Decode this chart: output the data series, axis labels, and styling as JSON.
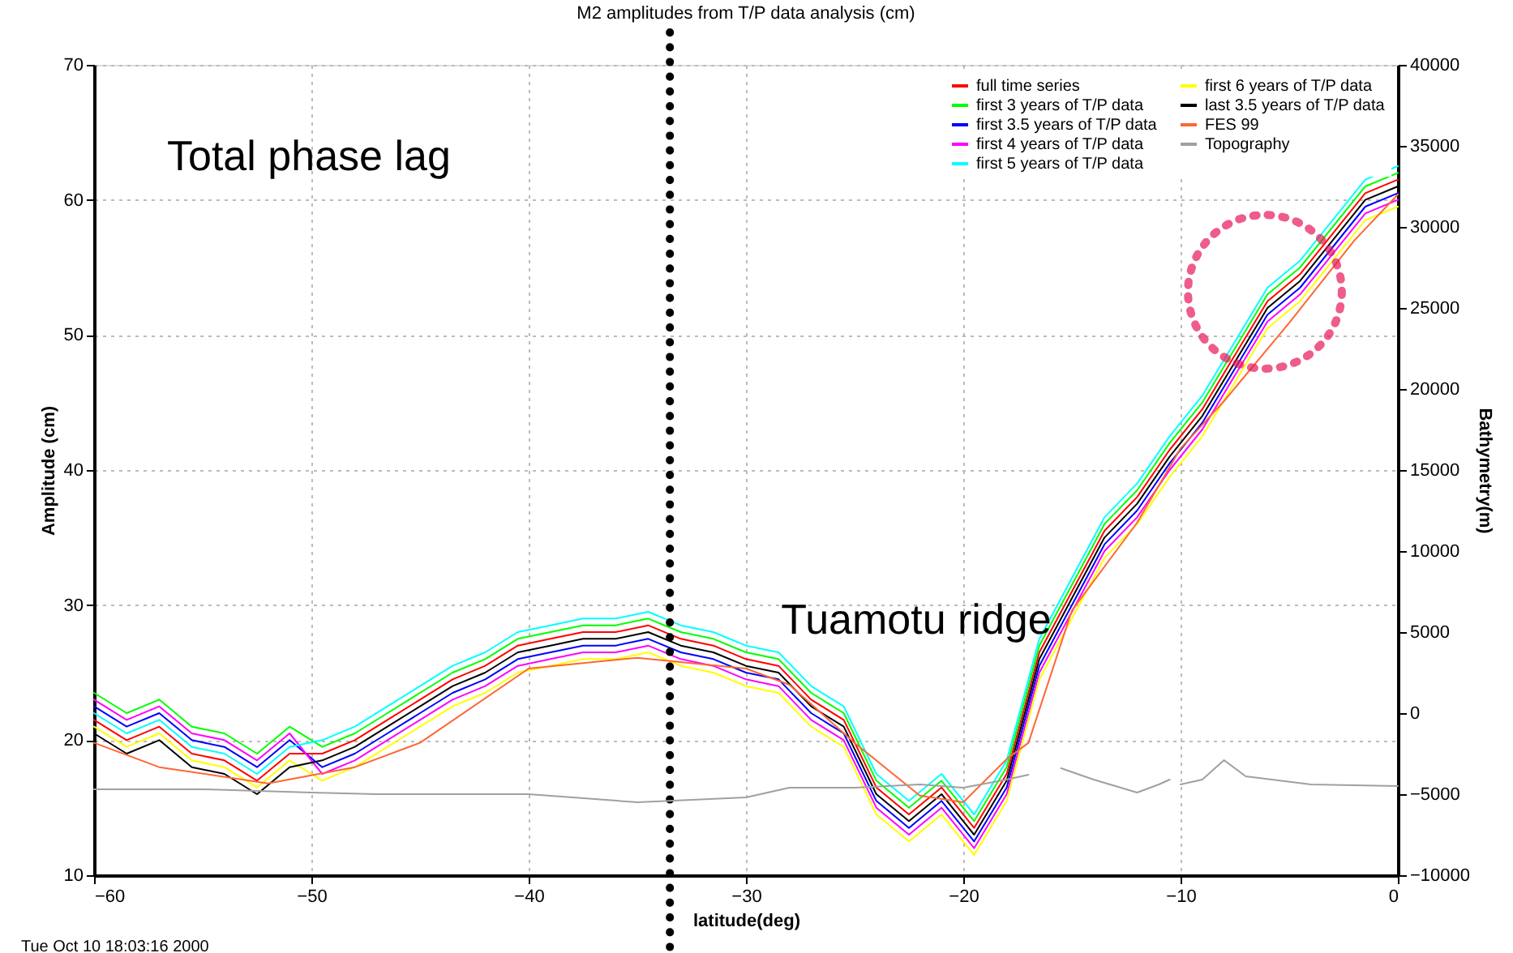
{
  "chart_data": {
    "type": "line",
    "title": "M2 amplitudes from T/P data analysis (cm)",
    "xlabel": "latitude(deg)",
    "ylabel": "Amplitude (cm)",
    "y2label": "Bathymetry(m)",
    "annotations": [
      "Total phase lag",
      "Tuamotu ridge",
      "Tue Oct 10 18:03:16 2000"
    ],
    "x": [
      -60,
      -58.5,
      -57,
      -55.5,
      -54,
      -52.5,
      -51,
      -49.5,
      -48,
      -46.5,
      -45,
      -43.5,
      -42,
      -40.5,
      -39,
      -37.5,
      -36,
      -34.5,
      -33,
      -31.5,
      -30,
      -28.5,
      -27,
      -25.5,
      -24,
      -22.5,
      -21,
      -19.5,
      -18,
      -16.5,
      -15,
      -13.5,
      -12,
      -10.5,
      -9,
      -7.5,
      -6,
      -4.5,
      -3,
      -1.5,
      0
    ],
    "series": [
      {
        "name": "full time series",
        "color": "#ff0000",
        "values": [
          21.5,
          20,
          21,
          19,
          18.5,
          17,
          19,
          19,
          20,
          21.5,
          23,
          24.5,
          25.5,
          27,
          27.5,
          28,
          28,
          28.5,
          27.5,
          27,
          26,
          25.5,
          23,
          21.5,
          16.5,
          14.5,
          16.5,
          13.5,
          17.5,
          26.5,
          31,
          35.5,
          38,
          41.5,
          44.5,
          48.5,
          52.5,
          54.5,
          57.5,
          60.5,
          61.5
        ]
      },
      {
        "name": "first 3 years of T/P data",
        "color": "#00ff00",
        "values": [
          23.5,
          22,
          23,
          21,
          20.5,
          19,
          21,
          19.5,
          20.5,
          22,
          23.5,
          25,
          26,
          27.5,
          28,
          28.5,
          28.5,
          29,
          28,
          27.5,
          26.5,
          26,
          23.5,
          22,
          17,
          15,
          17,
          14,
          18,
          27,
          31.5,
          36,
          38.5,
          42,
          45,
          49,
          53,
          55,
          58,
          61,
          62
        ]
      },
      {
        "name": "first 3.5 years of T/P data",
        "color": "#0000ff",
        "values": [
          22.5,
          21,
          22,
          20,
          19.5,
          18,
          20,
          18,
          19,
          20.5,
          22,
          23.5,
          24.5,
          26,
          26.5,
          27,
          27,
          27.5,
          26.5,
          26,
          25,
          24.5,
          22,
          20.5,
          15.5,
          13.5,
          15.5,
          12.5,
          16.5,
          25.5,
          30,
          34.5,
          37,
          40.5,
          43.5,
          47.5,
          51.5,
          53.5,
          56.5,
          59.5,
          60.5
        ]
      },
      {
        "name": "first 4 years of T/P data",
        "color": "#ff00ff",
        "values": [
          23,
          21.5,
          22.5,
          20.5,
          20,
          18.5,
          20.5,
          17.5,
          18.5,
          20,
          21.5,
          23,
          24,
          25.5,
          26,
          26.5,
          26.5,
          27,
          26,
          25.5,
          24.5,
          24,
          21.5,
          20,
          15,
          13,
          15,
          12,
          16,
          25,
          29.5,
          34,
          36.5,
          40,
          43,
          47,
          51,
          53,
          56,
          59,
          60
        ]
      },
      {
        "name": "first 5 years of T/P data",
        "color": "#00ffff",
        "values": [
          22,
          20.5,
          21.5,
          19.5,
          19,
          17.5,
          19.5,
          20,
          21,
          22.5,
          24,
          25.5,
          26.5,
          28,
          28.5,
          29,
          29,
          29.5,
          28.5,
          28,
          27,
          26.5,
          24,
          22.5,
          17.5,
          15.5,
          17.5,
          14.5,
          18.5,
          27.5,
          32,
          36.5,
          39,
          42.5,
          45.5,
          49.5,
          53.5,
          55.5,
          58.5,
          61.5,
          62.5
        ]
      },
      {
        "name": "first 6 years of T/P data",
        "color": "#ffff00",
        "values": [
          21,
          19.5,
          20.5,
          18.5,
          18,
          16.5,
          18.5,
          17,
          18,
          19.5,
          21,
          22.5,
          23.5,
          25,
          25.5,
          26,
          26,
          26.5,
          25.5,
          25,
          24,
          23.5,
          21,
          19.5,
          14.5,
          12.5,
          14.5,
          11.5,
          15.5,
          24.5,
          29,
          33.5,
          36,
          39.5,
          42.5,
          46.5,
          50.5,
          52.5,
          55.5,
          58.5,
          59.5
        ]
      },
      {
        "name": "last 3.5 years of T/P data",
        "color": "#000000",
        "values": [
          20.5,
          19,
          20,
          18,
          17.5,
          16,
          18,
          18.5,
          19.5,
          21,
          22.5,
          24,
          25,
          26.5,
          27,
          27.5,
          27.5,
          28,
          27,
          26.5,
          25.5,
          25,
          22.5,
          21,
          16,
          14,
          16,
          13,
          17,
          26,
          30.5,
          35,
          37.5,
          41,
          44,
          48,
          52,
          54,
          57,
          60,
          61
        ]
      },
      {
        "name": "FES 99",
        "color": "#ff6633",
        "x": [
          -60,
          -57,
          -52,
          -48,
          -45,
          -40,
          -35,
          -30,
          -28,
          -25,
          -22,
          -20,
          -18,
          -17,
          -15,
          -12,
          -10,
          -8,
          -5,
          -2,
          0
        ],
        "values": [
          19.8,
          18,
          16.8,
          18,
          19.8,
          25.3,
          26.1,
          25.3,
          24.1,
          19.8,
          15.9,
          15.4,
          18.6,
          19.8,
          29.6,
          36.1,
          41.6,
          45.1,
          50.9,
          57,
          60.4
        ]
      },
      {
        "name": "Topography",
        "color": "#a0a0a0",
        "axis": "y2",
        "x": [
          -60,
          -55,
          -50,
          -47,
          -40,
          -35,
          -30,
          -28,
          -25,
          -22,
          -20,
          -18,
          -17,
          -16,
          -15.5,
          -14,
          -12,
          -11,
          -10.5,
          -10.3,
          -10,
          -9,
          -8,
          -7,
          -4,
          0
        ],
        "values": [
          -4700,
          -4700,
          -4900,
          -5000,
          -5000,
          -5500,
          -5200,
          -4600,
          -4600,
          -4400,
          -4600,
          -4100,
          -3800,
          null,
          -3400,
          -4100,
          -4900,
          -4400,
          -4100,
          null,
          -4400,
          -4100,
          -2900,
          -3900,
          -4400,
          -4500
        ]
      }
    ],
    "xlim": [
      -60,
      0
    ],
    "xticks": [
      -60,
      -50,
      -40,
      -30,
      -20,
      -10,
      0
    ],
    "ylim": [
      10,
      70
    ],
    "yticks": [
      10,
      20,
      30,
      40,
      50,
      60,
      70
    ],
    "y2lim": [
      -10000,
      40000
    ],
    "y2ticks": [
      -10000,
      -5000,
      0,
      5000,
      10000,
      15000,
      20000,
      25000,
      30000,
      35000,
      40000
    ],
    "grid": true,
    "legend": "top right",
    "ref_lines": [
      {
        "axis": "x",
        "value": -33.5,
        "color": "#000000",
        "line_style": "dotted"
      }
    ]
  }
}
